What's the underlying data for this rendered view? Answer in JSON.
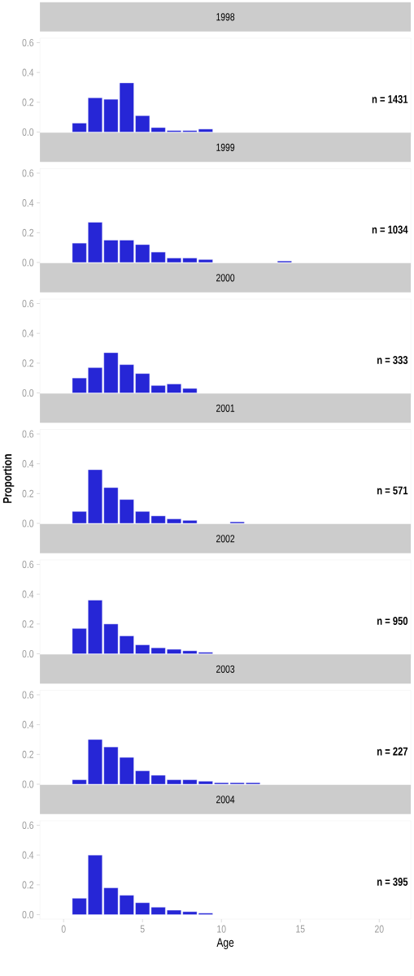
{
  "chart_data": [
    {
      "type": "bar",
      "title": "1998",
      "x": [
        1,
        2,
        3,
        4,
        5,
        6,
        7,
        8,
        9
      ],
      "values": [
        0.06,
        0.23,
        0.22,
        0.33,
        0.11,
        0.03,
        0.01,
        0.01,
        0.02
      ],
      "color": "#2626d6",
      "xlim": [
        -1.5,
        22
      ],
      "ylim": [
        -0.03,
        0.63
      ],
      "yticks": [
        {
          "value": 0,
          "label": "0.0"
        },
        {
          "value": 0.2,
          "label": "0.2"
        },
        {
          "value": 0.4,
          "label": "0.4"
        },
        {
          "value": 0.6,
          "label": "0.6"
        }
      ],
      "tick_labels": "y",
      "annotations": [
        "n = 1431"
      ]
    },
    {
      "type": "bar",
      "title": "1999",
      "x": [
        1,
        2,
        3,
        4,
        5,
        6,
        7,
        8,
        9,
        14
      ],
      "values": [
        0.13,
        0.27,
        0.15,
        0.15,
        0.12,
        0.07,
        0.03,
        0.03,
        0.02,
        0.01
      ],
      "color": "#2626d6",
      "xlim": [
        -1.5,
        22
      ],
      "ylim": [
        -0.03,
        0.63
      ],
      "yticks": [
        {
          "value": 0,
          "label": "0.0"
        },
        {
          "value": 0.2,
          "label": "0.2"
        },
        {
          "value": 0.4,
          "label": "0.4"
        },
        {
          "value": 0.6,
          "label": "0.6"
        }
      ],
      "tick_labels": "y",
      "annotations": [
        "n = 1034"
      ]
    },
    {
      "type": "bar",
      "title": "2000",
      "x": [
        1,
        2,
        3,
        4,
        5,
        6,
        7,
        8
      ],
      "values": [
        0.1,
        0.17,
        0.27,
        0.19,
        0.13,
        0.05,
        0.06,
        0.03
      ],
      "color": "#2626d6",
      "xlim": [
        -1.5,
        22
      ],
      "ylim": [
        -0.03,
        0.63
      ],
      "yticks": [
        {
          "value": 0,
          "label": "0.0"
        },
        {
          "value": 0.2,
          "label": "0.2"
        },
        {
          "value": 0.4,
          "label": "0.4"
        },
        {
          "value": 0.6,
          "label": "0.6"
        }
      ],
      "tick_labels": "y",
      "annotations": [
        "n = 333"
      ]
    },
    {
      "type": "bar",
      "title": "2001",
      "ylabel": "Proportion",
      "x": [
        1,
        2,
        3,
        4,
        5,
        6,
        7,
        8,
        11
      ],
      "values": [
        0.08,
        0.36,
        0.24,
        0.16,
        0.08,
        0.05,
        0.03,
        0.02,
        0.01
      ],
      "color": "#2626d6",
      "xlim": [
        -1.5,
        22
      ],
      "ylim": [
        -0.03,
        0.63
      ],
      "yticks": [
        {
          "value": 0,
          "label": "0.0"
        },
        {
          "value": 0.2,
          "label": "0.2"
        },
        {
          "value": 0.4,
          "label": "0.4"
        },
        {
          "value": 0.6,
          "label": "0.6"
        }
      ],
      "tick_labels": "y",
      "annotations": [
        "n = 571"
      ]
    },
    {
      "type": "bar",
      "title": "2002",
      "x": [
        1,
        2,
        3,
        4,
        5,
        6,
        7,
        8,
        9
      ],
      "values": [
        0.17,
        0.36,
        0.2,
        0.12,
        0.06,
        0.04,
        0.03,
        0.02,
        0.01
      ],
      "color": "#2626d6",
      "xlim": [
        -1.5,
        22
      ],
      "ylim": [
        -0.03,
        0.63
      ],
      "yticks": [
        {
          "value": 0,
          "label": "0.0"
        },
        {
          "value": 0.2,
          "label": "0.2"
        },
        {
          "value": 0.4,
          "label": "0.4"
        },
        {
          "value": 0.6,
          "label": "0.6"
        }
      ],
      "tick_labels": "y",
      "annotations": [
        "n = 950"
      ]
    },
    {
      "type": "bar",
      "title": "2003",
      "x": [
        1,
        2,
        3,
        4,
        5,
        6,
        7,
        8,
        9,
        10,
        11,
        12
      ],
      "values": [
        0.03,
        0.3,
        0.25,
        0.18,
        0.09,
        0.06,
        0.03,
        0.03,
        0.02,
        0.01,
        0.01,
        0.01
      ],
      "color": "#2626d6",
      "xlim": [
        -1.5,
        22
      ],
      "ylim": [
        -0.03,
        0.63
      ],
      "yticks": [
        {
          "value": 0,
          "label": "0.0"
        },
        {
          "value": 0.2,
          "label": "0.2"
        },
        {
          "value": 0.4,
          "label": "0.4"
        },
        {
          "value": 0.6,
          "label": "0.6"
        }
      ],
      "tick_labels": "y",
      "annotations": [
        "n = 227"
      ]
    },
    {
      "type": "bar",
      "title": "2004",
      "xlabel": "Age",
      "x": [
        1,
        2,
        3,
        4,
        5,
        6,
        7,
        8,
        9
      ],
      "values": [
        0.11,
        0.4,
        0.18,
        0.13,
        0.08,
        0.05,
        0.03,
        0.02,
        0.01
      ],
      "color": "#2626d6",
      "xlim": [
        -1.5,
        22
      ],
      "ylim": [
        -0.03,
        0.63
      ],
      "xticks": [
        0,
        5,
        10,
        15,
        20
      ],
      "yticks": [
        {
          "value": 0,
          "label": "0.0"
        },
        {
          "value": 0.2,
          "label": "0.2"
        },
        {
          "value": 0.4,
          "label": "0.4"
        },
        {
          "value": 0.6,
          "label": "0.6"
        }
      ],
      "annotations": [
        "n = 395"
      ]
    }
  ]
}
